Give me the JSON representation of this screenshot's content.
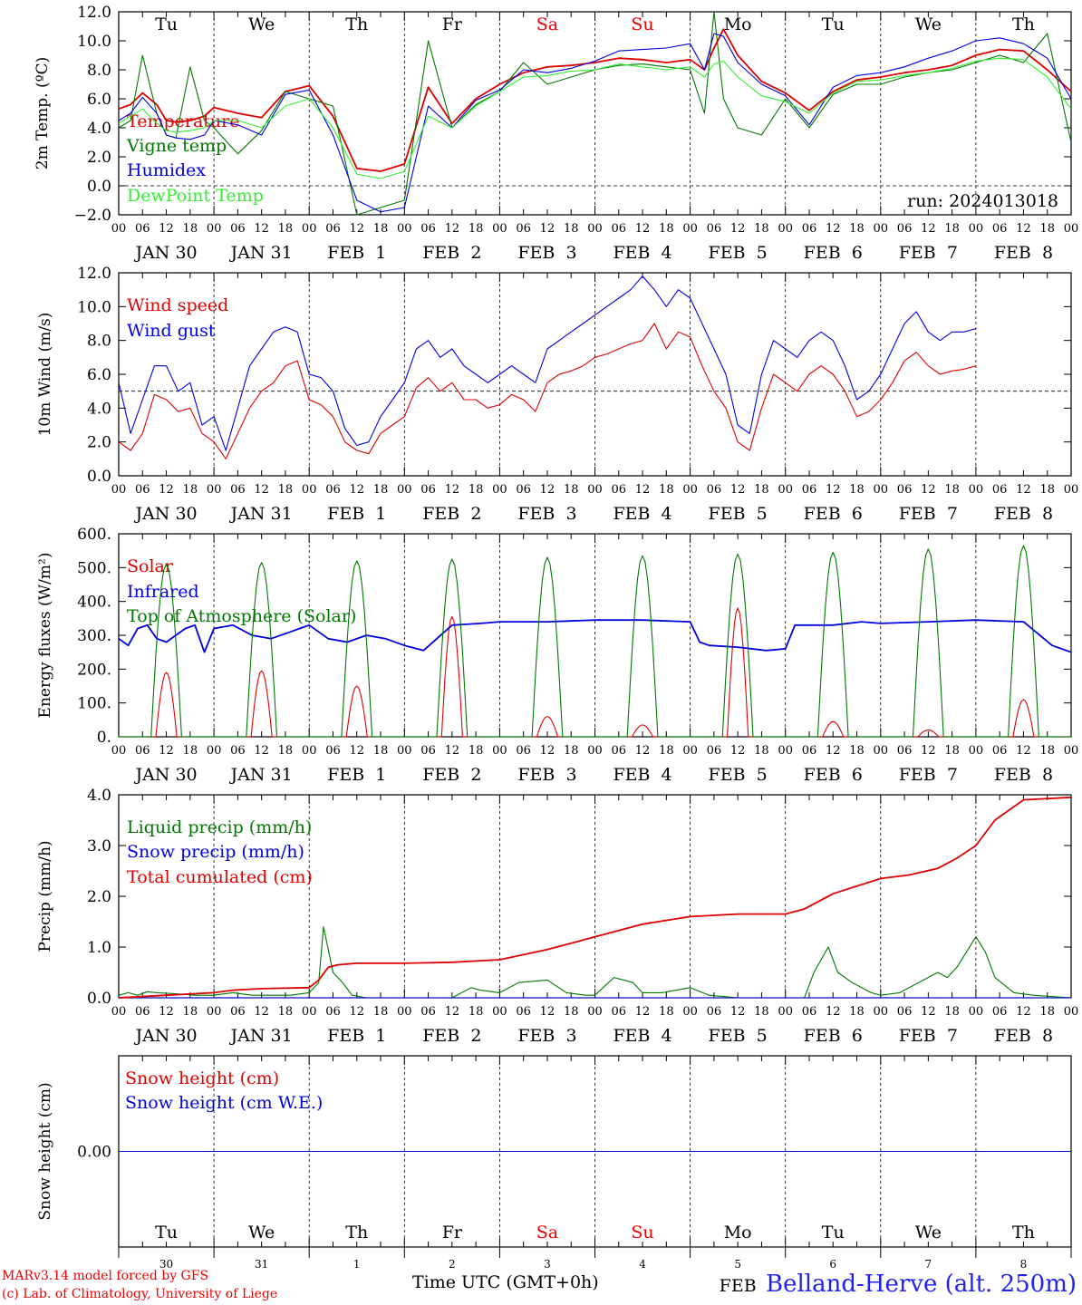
{
  "meta": {
    "model_text": "MARv3.14 model forced by GFS",
    "lab_text": "(c) Lab. of Climatology, University of Liege",
    "xlabel": "Time UTC (GMT+0h)",
    "station": "Belland-Herve (alt. 250m)",
    "run_text": "run: 2024013018"
  },
  "axis": {
    "hour_ticks": [
      "00",
      "06",
      "12",
      "18"
    ],
    "end_tick": "00",
    "date_labels": [
      "JAN 30",
      "JAN 31",
      "FEB  1",
      "FEB  2",
      "FEB  3",
      "FEB  4",
      "FEB  5",
      "FEB  6",
      "FEB  7",
      "FEB  8"
    ],
    "day_names": [
      "Tu",
      "We",
      "Th",
      "Fr",
      "Sa",
      "Su",
      "Mo",
      "Tu",
      "We",
      "Th"
    ],
    "weekend_color": "#ee0000",
    "bottom_day_numbers": [
      "30",
      "31",
      "1",
      "2",
      "3",
      "4",
      "5",
      "6",
      "7",
      "8"
    ],
    "bottom_month_label": "FEB"
  },
  "chart_data": [
    {
      "type": "line",
      "id": "temp",
      "ylabel": "2m Temp. (ºC)",
      "ylim": [
        -2,
        12
      ],
      "yticks": [
        "−2.0",
        "0.0",
        "2.0",
        "4.0",
        "6.0",
        "8.0",
        "10.0",
        "12.0"
      ],
      "ytick_values": [
        -2,
        0,
        2,
        4,
        6,
        8,
        10,
        12
      ],
      "ref_line": 0,
      "x_days": [
        0,
        0.125,
        0.25,
        0.4,
        0.5,
        0.6,
        0.75,
        0.9,
        1.0,
        1.25,
        1.5,
        1.75,
        2.0,
        2.25,
        2.5,
        2.75,
        3.0,
        3.25,
        3.5,
        3.75,
        4.0,
        4.25,
        4.5,
        4.75,
        5.0,
        5.25,
        5.5,
        5.75,
        6.0,
        6.15,
        6.25,
        6.35,
        6.5,
        6.75,
        7.0,
        7.25,
        7.5,
        7.75,
        8.0,
        8.25,
        8.5,
        8.75,
        9.0,
        9.25,
        9.5,
        9.75,
        10.0
      ],
      "series": [
        {
          "name": "Temperature",
          "color": "#dd0000",
          "values": [
            5.3,
            5.6,
            6.4,
            5.6,
            4.5,
            4.4,
            4.5,
            4.8,
            5.4,
            5.0,
            4.7,
            6.5,
            6.9,
            4.8,
            1.2,
            1.0,
            1.5,
            6.8,
            4.3,
            6.0,
            7.0,
            7.8,
            8.2,
            8.3,
            8.5,
            8.8,
            8.7,
            8.5,
            8.7,
            8.0,
            9.5,
            10.8,
            9.0,
            7.2,
            6.4,
            5.2,
            6.5,
            7.3,
            7.5,
            7.8,
            8.0,
            8.3,
            9.0,
            9.4,
            9.3,
            8.0,
            6.5
          ]
        },
        {
          "name": "Vigne temp",
          "color": "#007700",
          "values": [
            4.0,
            4.5,
            9.0,
            5.0,
            3.5,
            3.3,
            8.2,
            4.5,
            4.0,
            2.2,
            3.8,
            6.5,
            6.0,
            5.5,
            -2.0,
            -1.5,
            -1.0,
            10.0,
            4.0,
            5.6,
            6.5,
            8.5,
            7.0,
            7.5,
            8.0,
            8.3,
            8.4,
            8.2,
            8.0,
            5.0,
            12.0,
            6.0,
            4.0,
            3.5,
            6.0,
            4.0,
            6.3,
            7.0,
            7.0,
            7.5,
            7.8,
            8.0,
            8.5,
            9.0,
            8.5,
            10.5,
            3.0
          ]
        },
        {
          "name": "Humidex",
          "color": "#0000dd",
          "values": [
            4.5,
            5.0,
            6.1,
            5.0,
            3.5,
            3.3,
            3.2,
            3.5,
            4.5,
            4.2,
            3.5,
            6.3,
            6.6,
            3.5,
            -1.0,
            -1.8,
            -1.5,
            5.5,
            4.0,
            5.9,
            6.6,
            8.0,
            7.8,
            8.1,
            8.6,
            9.3,
            9.4,
            9.5,
            9.8,
            8.0,
            10.5,
            10.3,
            8.5,
            7.0,
            6.2,
            4.2,
            6.8,
            7.6,
            7.8,
            8.2,
            8.8,
            9.3,
            10.0,
            10.2,
            9.8,
            8.8,
            6.0
          ]
        },
        {
          "name": "DewPoint Temp",
          "color": "#33ee33",
          "values": [
            4.3,
            4.8,
            5.3,
            4.3,
            3.8,
            3.7,
            3.8,
            4.0,
            4.5,
            4.5,
            4.0,
            5.5,
            6.0,
            4.0,
            0.8,
            0.5,
            1.0,
            4.8,
            4.0,
            5.5,
            6.5,
            7.5,
            7.6,
            7.9,
            8.0,
            8.4,
            8.2,
            8.0,
            8.2,
            7.5,
            8.4,
            8.6,
            7.5,
            6.2,
            5.8,
            5.0,
            6.4,
            7.2,
            7.3,
            7.6,
            7.8,
            8.1,
            8.6,
            8.8,
            8.7,
            7.5,
            5.3
          ]
        }
      ]
    },
    {
      "type": "line",
      "id": "wind",
      "ylabel": "10m Wind (m/s)",
      "ylim": [
        0,
        12
      ],
      "yticks": [
        "0.0",
        "2.0",
        "4.0",
        "6.0",
        "8.0",
        "10.0",
        "12.0"
      ],
      "ytick_values": [
        0,
        2,
        4,
        6,
        8,
        10,
        12
      ],
      "ref_line": 5,
      "x_days": [
        0,
        0.125,
        0.25,
        0.375,
        0.5,
        0.625,
        0.75,
        0.875,
        1.0,
        1.125,
        1.25,
        1.375,
        1.5,
        1.625,
        1.75,
        1.875,
        2.0,
        2.125,
        2.25,
        2.375,
        2.5,
        2.625,
        2.75,
        2.875,
        3.0,
        3.125,
        3.25,
        3.375,
        3.5,
        3.625,
        3.75,
        3.875,
        4.0,
        4.125,
        4.25,
        4.375,
        4.5,
        4.625,
        4.75,
        4.875,
        5.0,
        5.125,
        5.25,
        5.375,
        5.5,
        5.625,
        5.75,
        5.875,
        6.0,
        6.125,
        6.25,
        6.375,
        6.5,
        6.625,
        6.75,
        6.875,
        7.0,
        7.125,
        7.25,
        7.375,
        7.5,
        7.625,
        7.75,
        7.875,
        8.0,
        8.125,
        8.25,
        8.375,
        8.5,
        8.625,
        8.75,
        8.875,
        9.0,
        9.125,
        9.25,
        9.375,
        9.5,
        9.625,
        9.75,
        9.875,
        10.0
      ],
      "series": [
        {
          "name": "Wind speed",
          "color": "#dd0000",
          "values": [
            2.0,
            1.5,
            2.5,
            4.8,
            4.5,
            3.8,
            4.0,
            2.5,
            2.0,
            1.0,
            2.5,
            4.0,
            5.0,
            5.5,
            6.5,
            6.8,
            4.5,
            4.2,
            3.5,
            2.0,
            1.5,
            1.3,
            2.5,
            3.0,
            3.5,
            5.2,
            5.8,
            5.0,
            5.5,
            4.5,
            4.5,
            4.0,
            4.2,
            4.8,
            4.5,
            3.8,
            5.5,
            6.0,
            6.2,
            6.5,
            7.0,
            7.2,
            7.5,
            7.8,
            8.0,
            9.0,
            7.5,
            8.5,
            8.2,
            6.5,
            5.0,
            4.0,
            2.0,
            1.5,
            4.0,
            6.0,
            5.5,
            5.0,
            6.0,
            6.5,
            6.0,
            5.0,
            3.5,
            3.8,
            4.5,
            5.5,
            6.8,
            7.3,
            6.5,
            6.0,
            6.2,
            6.3,
            6.5
          ]
        },
        {
          "name": "Wind gust",
          "color": "#0000dd",
          "values": [
            5.5,
            2.5,
            4.5,
            6.5,
            6.5,
            5.0,
            5.5,
            3.0,
            3.5,
            1.5,
            4.0,
            6.5,
            7.5,
            8.5,
            8.8,
            8.5,
            6.0,
            5.8,
            5.0,
            2.8,
            1.8,
            2.0,
            3.5,
            4.5,
            5.5,
            7.5,
            8.0,
            7.0,
            7.5,
            6.5,
            6.0,
            5.5,
            6.0,
            6.5,
            6.0,
            5.5,
            7.5,
            8.0,
            8.5,
            9.0,
            9.5,
            10.0,
            10.5,
            11.0,
            11.8,
            11.0,
            10.0,
            11.0,
            10.5,
            9.0,
            7.5,
            6.0,
            3.0,
            2.5,
            6.0,
            8.0,
            7.5,
            7.0,
            8.0,
            8.5,
            8.0,
            6.5,
            4.5,
            5.0,
            6.0,
            7.5,
            9.0,
            9.7,
            8.5,
            8.0,
            8.5,
            8.5,
            8.7
          ]
        }
      ]
    },
    {
      "type": "line",
      "id": "flux",
      "ylabel": "Energy fluxes (W/m²)",
      "ylim": [
        0,
        600
      ],
      "yticks": [
        "0.",
        "100.",
        "200.",
        "300.",
        "400.",
        "500.",
        "600."
      ],
      "ytick_values": [
        0,
        100,
        200,
        300,
        400,
        500,
        600
      ],
      "series": [
        {
          "name": "Solar",
          "color": "#dd0000",
          "peaks": [
            190,
            195,
            150,
            355,
            60,
            35,
            380,
            45,
            20,
            110
          ]
        },
        {
          "name": "Infrared",
          "color": "#0000dd",
          "x_days": [
            0,
            0.1,
            0.2,
            0.3,
            0.4,
            0.5,
            0.6,
            0.7,
            0.8,
            0.9,
            1.0,
            1.2,
            1.4,
            1.6,
            1.8,
            1.9,
            2.0,
            2.2,
            2.4,
            2.6,
            2.8,
            3.0,
            3.2,
            3.5,
            3.8,
            4.0,
            4.5,
            5.0,
            5.5,
            6.0,
            6.1,
            6.2,
            6.5,
            6.8,
            7.0,
            7.1,
            7.5,
            7.8,
            8.0,
            8.5,
            9.0,
            9.5,
            9.8,
            10.0
          ],
          "values": [
            290,
            270,
            320,
            330,
            290,
            280,
            300,
            320,
            330,
            250,
            320,
            330,
            300,
            290,
            310,
            320,
            330,
            290,
            280,
            300,
            290,
            270,
            255,
            330,
            335,
            340,
            340,
            345,
            345,
            340,
            280,
            270,
            265,
            255,
            260,
            330,
            330,
            340,
            335,
            340,
            345,
            340,
            270,
            250
          ]
        },
        {
          "name": "Top of Atmosphere (Solar)",
          "color": "#007700",
          "peaks": [
            510,
            515,
            520,
            525,
            530,
            535,
            540,
            545,
            555,
            565
          ]
        }
      ]
    },
    {
      "type": "line",
      "id": "precip",
      "ylabel": "Precip (mm/h)",
      "ylim": [
        0,
        4
      ],
      "yticks": [
        "0.0",
        "1.0",
        "2.0",
        "3.0",
        "4.0"
      ],
      "ytick_values": [
        0,
        1,
        2,
        3,
        4
      ],
      "series": [
        {
          "name": "Liquid precip (mm/h)",
          "color": "#007700",
          "x_days": [
            0,
            0.1,
            0.2,
            0.3,
            0.4,
            0.6,
            0.8,
            1.0,
            1.2,
            1.4,
            1.6,
            1.8,
            2.0,
            2.1,
            2.15,
            2.25,
            2.35,
            2.45,
            2.6,
            3.0,
            3.5,
            3.7,
            3.8,
            4.0,
            4.2,
            4.5,
            4.7,
            4.9,
            5.0,
            5.2,
            5.4,
            5.5,
            5.7,
            6.0,
            6.2,
            6.5,
            7.0,
            7.2,
            7.3,
            7.45,
            7.55,
            7.7,
            7.9,
            8.0,
            8.2,
            8.4,
            8.6,
            8.7,
            8.8,
            9.0,
            9.1,
            9.2,
            9.4,
            9.6,
            10.0
          ],
          "values": [
            0.05,
            0.1,
            0.05,
            0.12,
            0.1,
            0.08,
            0.05,
            0.05,
            0.1,
            0.05,
            0.05,
            0.05,
            0.1,
            0.3,
            1.4,
            0.5,
            0.3,
            0.05,
            0.0,
            0.0,
            0.0,
            0.2,
            0.15,
            0.1,
            0.3,
            0.35,
            0.1,
            0.05,
            0.05,
            0.4,
            0.3,
            0.1,
            0.1,
            0.2,
            0.05,
            0.0,
            0.0,
            0.0,
            0.5,
            1.0,
            0.5,
            0.3,
            0.1,
            0.05,
            0.1,
            0.3,
            0.5,
            0.4,
            0.6,
            1.2,
            0.9,
            0.4,
            0.1,
            0.05,
            0.0
          ]
        },
        {
          "name": "Snow precip (mm/h)",
          "color": "#0000dd",
          "x_days": [
            0,
            10
          ],
          "values": [
            0,
            0
          ]
        },
        {
          "name": "Total cumulated (cm)",
          "color": "#dd0000",
          "x_days": [
            0,
            0.5,
            1.0,
            1.2,
            1.5,
            2.0,
            2.1,
            2.2,
            2.3,
            2.5,
            3.0,
            3.5,
            4.0,
            4.5,
            5.0,
            5.5,
            6.0,
            6.5,
            7.0,
            7.2,
            7.5,
            8.0,
            8.3,
            8.6,
            8.8,
            9.0,
            9.2,
            9.5,
            10.0
          ],
          "values": [
            0.0,
            0.05,
            0.1,
            0.15,
            0.18,
            0.2,
            0.35,
            0.6,
            0.65,
            0.68,
            0.68,
            0.7,
            0.75,
            0.95,
            1.2,
            1.45,
            1.6,
            1.65,
            1.65,
            1.75,
            2.05,
            2.35,
            2.42,
            2.55,
            2.75,
            3.0,
            3.5,
            3.9,
            3.95
          ]
        }
      ]
    },
    {
      "type": "line",
      "id": "snow",
      "ylabel": "Snow height (cm)",
      "ylim": [
        -1,
        1
      ],
      "yticks": [
        "0.00"
      ],
      "ytick_values": [
        0
      ],
      "series": [
        {
          "name": "Snow height (cm)",
          "color": "#dd0000",
          "x_days": [
            0,
            10
          ],
          "values": [
            0,
            0
          ]
        },
        {
          "name": "Snow height (cm W.E.)",
          "color": "#0000dd",
          "x_days": [
            0,
            10
          ],
          "values": [
            0,
            0
          ]
        }
      ]
    }
  ]
}
